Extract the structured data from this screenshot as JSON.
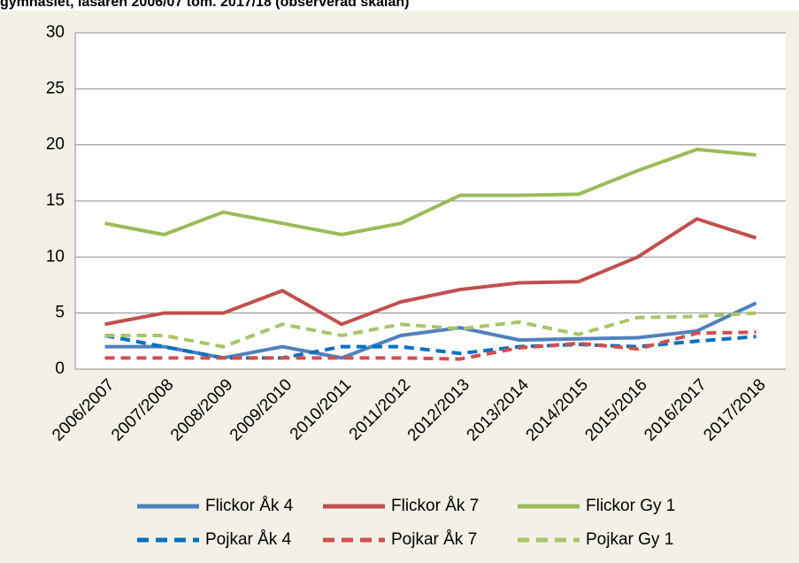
{
  "chart_data": {
    "type": "line",
    "title": "gymnasiet, läsåren 2006/07 tom. 2017/18 (observerad skalan)",
    "categories": [
      "2006/2007",
      "2007/2008",
      "2008/2009",
      "2009/2010",
      "2010/2011",
      "2011/2012",
      "2012/2013",
      "2013/2014",
      "2014/2015",
      "2015/2016",
      "2016/2017",
      "2017/2018"
    ],
    "series": [
      {
        "name": "Flickor Åk 4",
        "color": "#4f81bd",
        "style": "solid",
        "values": [
          2,
          2,
          1,
          2,
          1,
          3,
          3.7,
          2.6,
          2.7,
          2.8,
          3.4,
          5.9
        ]
      },
      {
        "name": "Flickor Åk 7",
        "color": "#c0504d",
        "style": "solid",
        "values": [
          4,
          5,
          5,
          7,
          4,
          6,
          7.1,
          7.7,
          7.8,
          10,
          13.4,
          11.7
        ]
      },
      {
        "name": "Flickor Gy 1",
        "color": "#9bbb59",
        "style": "solid",
        "values": [
          13,
          12,
          14,
          13,
          12,
          13,
          15.5,
          15.5,
          15.6,
          17.7,
          19.6,
          19.1
        ]
      },
      {
        "name": "Pojkar Åk 4",
        "color": "#0070c0",
        "style": "dashed",
        "values": [
          3,
          2,
          1,
          1,
          2,
          2,
          1.4,
          2,
          2.2,
          2,
          2.5,
          2.9
        ]
      },
      {
        "name": "Pojkar Åk 7",
        "color": "#d0504d",
        "style": "dashed",
        "values": [
          1,
          1,
          1,
          1,
          1,
          1,
          0.9,
          1.9,
          2.3,
          1.8,
          3.2,
          3.3
        ]
      },
      {
        "name": "Pojkar Gy 1",
        "color": "#a9c46a",
        "style": "dashed",
        "values": [
          3,
          3,
          2,
          4,
          3,
          4,
          3.6,
          4.2,
          3.1,
          4.6,
          4.7,
          5
        ]
      }
    ],
    "ylim": [
      0,
      30
    ],
    "yticks": [
      0,
      5,
      10,
      15,
      20,
      25,
      30
    ],
    "grid": true
  }
}
